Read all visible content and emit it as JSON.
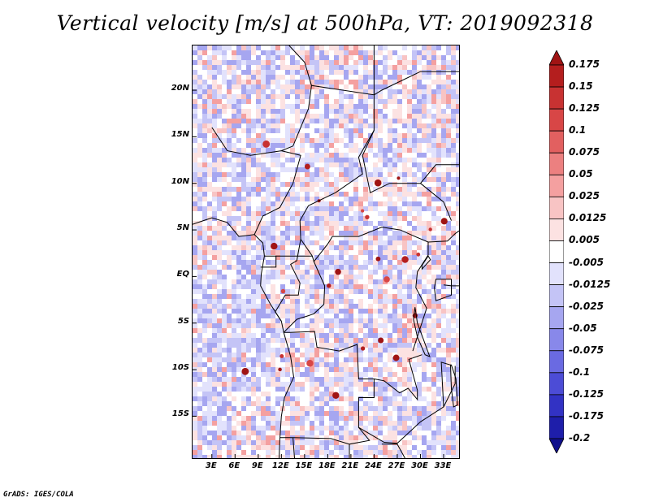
{
  "title": "Vertical velocity [m/s] at 500hPa, VT: 2019092318",
  "credit": "GrADS: IGES/COLA",
  "map": {
    "lat_ticks": [
      {
        "label": "20N",
        "value": 20
      },
      {
        "label": "15N",
        "value": 15
      },
      {
        "label": "10N",
        "value": 10
      },
      {
        "label": "5N",
        "value": 5
      },
      {
        "label": "EQ",
        "value": 0
      },
      {
        "label": "5S",
        "value": -5
      },
      {
        "label": "10S",
        "value": -10
      },
      {
        "label": "15S",
        "value": -15
      }
    ],
    "lon_ticks": [
      {
        "label": "3E",
        "value": 3
      },
      {
        "label": "6E",
        "value": 6
      },
      {
        "label": "9E",
        "value": 9
      },
      {
        "label": "12E",
        "value": 12
      },
      {
        "label": "15E",
        "value": 15
      },
      {
        "label": "18E",
        "value": 18
      },
      {
        "label": "21E",
        "value": 21
      },
      {
        "label": "24E",
        "value": 24
      },
      {
        "label": "27E",
        "value": 27
      },
      {
        "label": "30E",
        "value": 30
      },
      {
        "label": "33E",
        "value": 33
      }
    ],
    "lat_range": [
      -19.5,
      24.8
    ],
    "lon_range": [
      0.5,
      35
    ]
  },
  "colorbar": {
    "labels": [
      "0.175",
      "0.15",
      "0.125",
      "0.1",
      "0.075",
      "0.05",
      "0.025",
      "0.0125",
      "0.005",
      "-0.005",
      "-0.0125",
      "-0.025",
      "-0.05",
      "-0.075",
      "-0.1",
      "-0.125",
      "-0.175",
      "-0.2"
    ],
    "colors": [
      "#a01414",
      "#b41e1e",
      "#c83232",
      "#d84646",
      "#e26060",
      "#ec8080",
      "#f4a0a0",
      "#f8c4c4",
      "#fce2e2",
      "#ffffff",
      "#e2e2fc",
      "#c4c4f6",
      "#a6a6f0",
      "#8888ea",
      "#6a6ae2",
      "#4c4cd6",
      "#3232c4",
      "#1e1eaa",
      "#10108c"
    ]
  }
}
